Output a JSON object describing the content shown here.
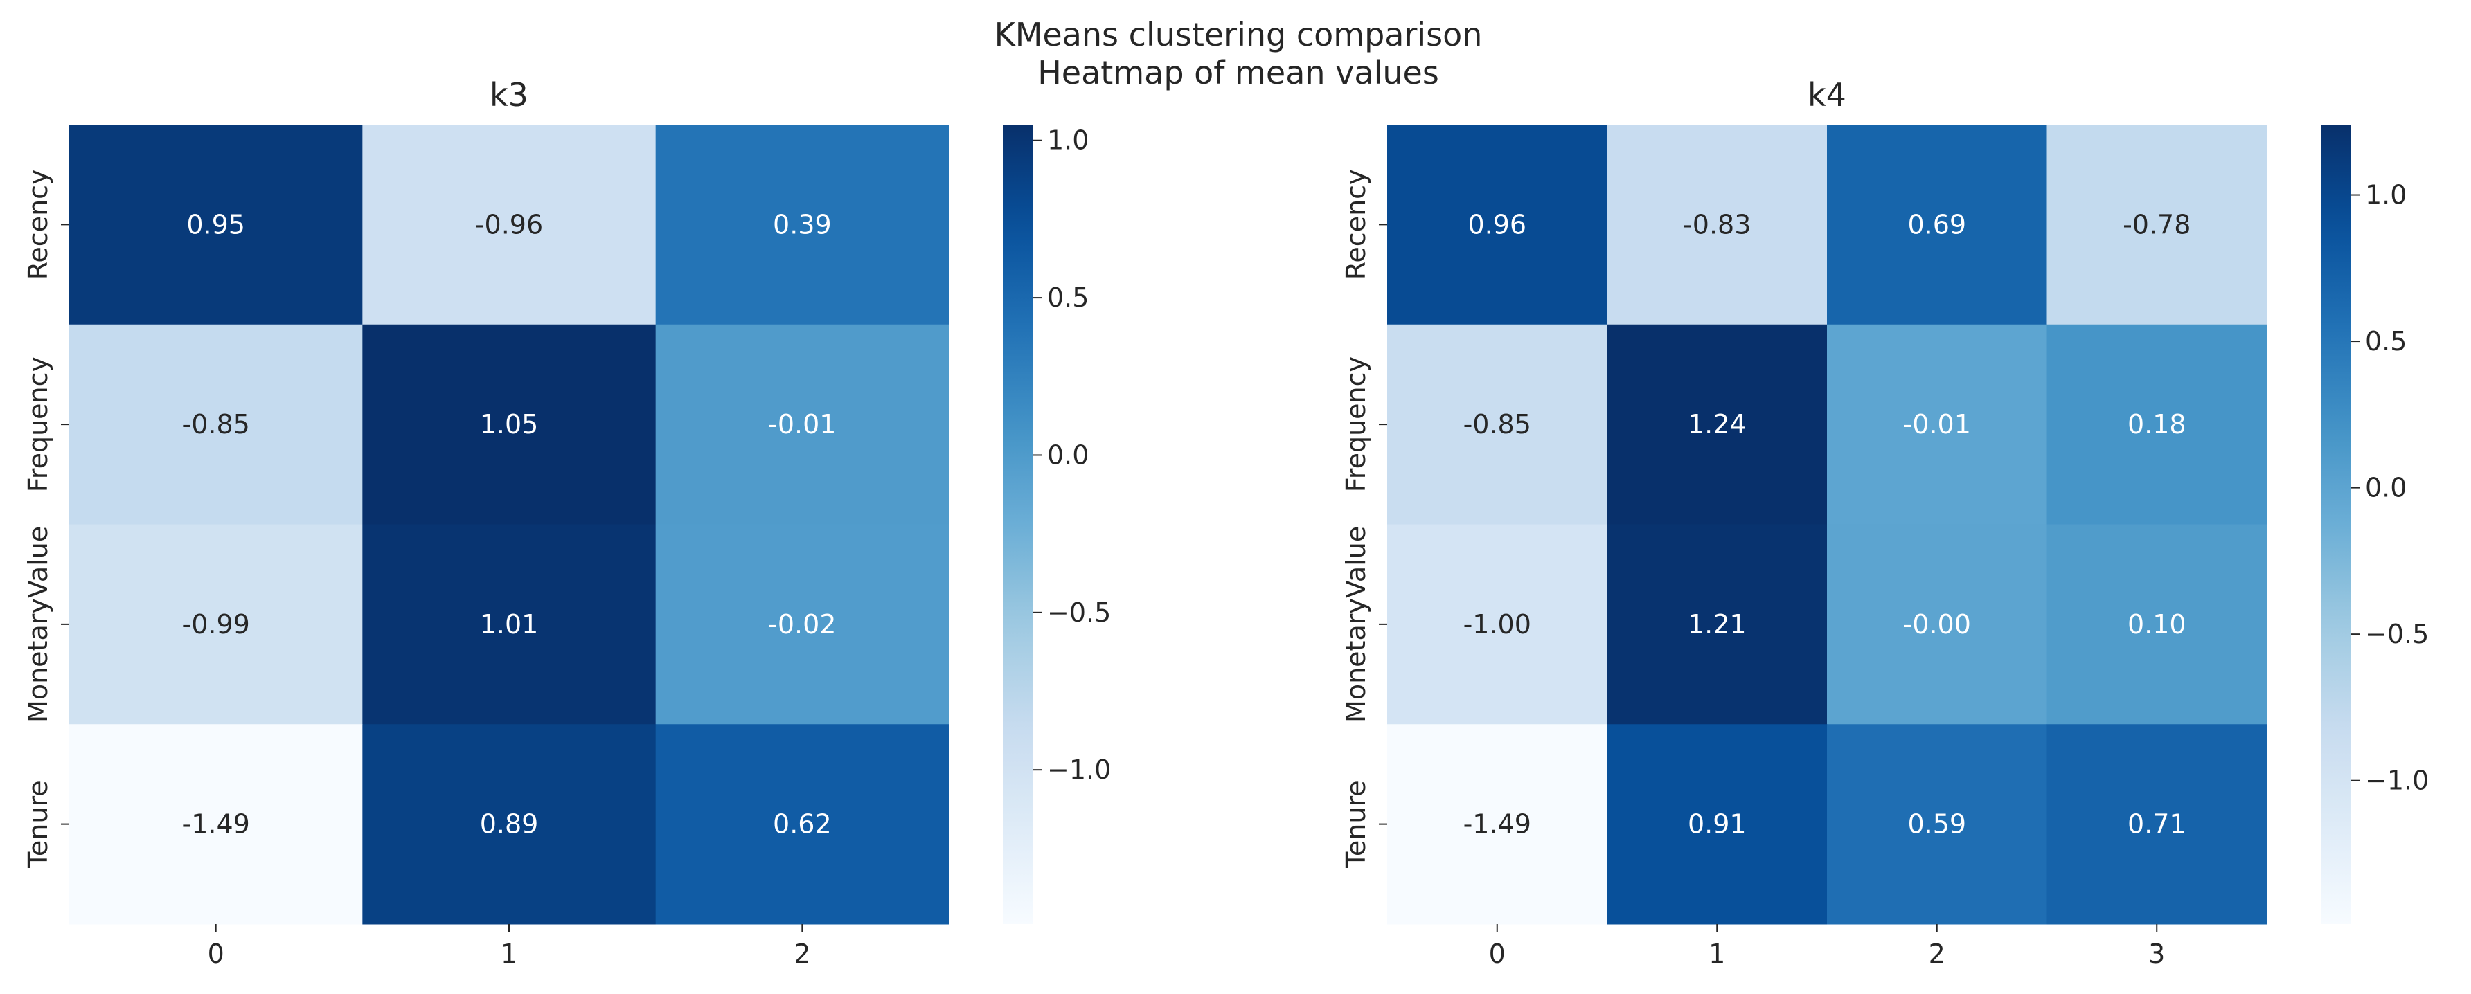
{
  "figure": {
    "suptitle_line1": "KMeans clustering comparison",
    "suptitle_line2": "Heatmap of mean values"
  },
  "chart_data": [
    {
      "type": "heatmap",
      "title": "k3",
      "colormap": "Blues",
      "rows": [
        "Recency",
        "Frequency",
        "MonetaryValue",
        "Tenure"
      ],
      "columns": [
        "0",
        "1",
        "2"
      ],
      "values": [
        [
          0.95,
          -0.96,
          0.39
        ],
        [
          -0.85,
          1.05,
          -0.01
        ],
        [
          -0.99,
          1.01,
          -0.02
        ],
        [
          -1.49,
          0.89,
          0.62
        ]
      ],
      "labels": [
        [
          "0.95",
          "-0.96",
          "0.39"
        ],
        [
          "-0.85",
          "1.05",
          "-0.01"
        ],
        [
          "-0.99",
          "1.01",
          "-0.02"
        ],
        [
          "-1.49",
          "0.89",
          "0.62"
        ]
      ],
      "colorbar": {
        "vmin": -1.49,
        "vmax": 1.05,
        "ticks": [
          1.0,
          0.5,
          0.0,
          -0.5,
          -1.0
        ],
        "tick_labels": [
          "1.0",
          "0.5",
          "0.0",
          "−0.5",
          "−1.0"
        ]
      }
    },
    {
      "type": "heatmap",
      "title": "k4",
      "colormap": "Blues",
      "rows": [
        "Recency",
        "Frequency",
        "MonetaryValue",
        "Tenure"
      ],
      "columns": [
        "0",
        "1",
        "2",
        "3"
      ],
      "values": [
        [
          0.96,
          -0.83,
          0.69,
          -0.78
        ],
        [
          -0.85,
          1.24,
          -0.01,
          0.18
        ],
        [
          -1.0,
          1.21,
          -0.0,
          0.1
        ],
        [
          -1.49,
          0.91,
          0.59,
          0.71
        ]
      ],
      "labels": [
        [
          "0.96",
          "-0.83",
          "0.69",
          "-0.78"
        ],
        [
          "-0.85",
          "1.24",
          "-0.01",
          "0.18"
        ],
        [
          "-1.00",
          "1.21",
          "-0.00",
          "0.10"
        ],
        [
          "-1.49",
          "0.91",
          "0.59",
          "0.71"
        ]
      ],
      "colorbar": {
        "vmin": -1.49,
        "vmax": 1.24,
        "ticks": [
          1.0,
          0.5,
          0.0,
          -0.5,
          -1.0
        ],
        "tick_labels": [
          "1.0",
          "0.5",
          "0.0",
          "−0.5",
          "−1.0"
        ]
      }
    }
  ]
}
